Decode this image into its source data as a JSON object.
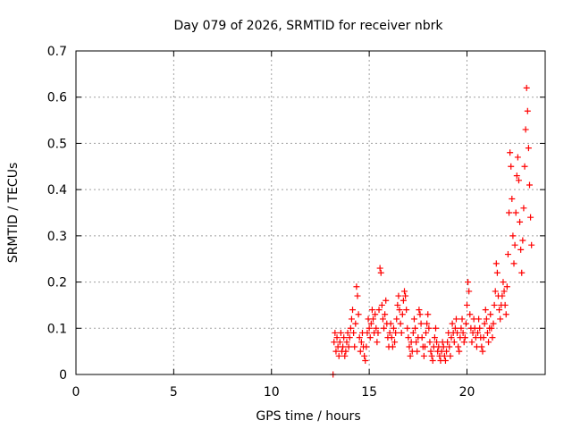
{
  "chart_data": {
    "type": "scatter",
    "title": "Day 079 of 2026, SRMTID for receiver nbrk",
    "xlabel": "GPS time / hours",
    "ylabel": "SRMTID / TECUs",
    "xlim": [
      0,
      24
    ],
    "ylim": [
      0,
      0.7
    ],
    "x_ticks": [
      0,
      5,
      10,
      15,
      20
    ],
    "y_ticks": [
      0,
      0.1,
      0.2,
      0.3,
      0.4,
      0.5,
      0.6,
      0.7
    ],
    "x_tick_labels": [
      "0",
      "5",
      "10",
      "15",
      "20"
    ],
    "y_tick_labels": [
      "0",
      "0.1",
      "0.2",
      "0.3",
      "0.4",
      "0.5",
      "0.6",
      "0.7"
    ],
    "grid": true,
    "marker": "+",
    "series": [
      {
        "name": "SRMTID",
        "color": "#ff0000",
        "points": [
          [
            13.15,
            0.0
          ],
          [
            13.2,
            0.07
          ],
          [
            13.25,
            0.09
          ],
          [
            13.3,
            0.05
          ],
          [
            13.35,
            0.08
          ],
          [
            13.4,
            0.06
          ],
          [
            13.45,
            0.04
          ],
          [
            13.5,
            0.07
          ],
          [
            13.55,
            0.09
          ],
          [
            13.6,
            0.05
          ],
          [
            13.65,
            0.06
          ],
          [
            13.7,
            0.08
          ],
          [
            13.75,
            0.04
          ],
          [
            13.8,
            0.05
          ],
          [
            13.85,
            0.07
          ],
          [
            13.9,
            0.09
          ],
          [
            13.95,
            0.06
          ],
          [
            14.0,
            0.08
          ],
          [
            14.05,
            0.1
          ],
          [
            14.1,
            0.12
          ],
          [
            14.15,
            0.14
          ],
          [
            14.2,
            0.09
          ],
          [
            14.25,
            0.06
          ],
          [
            14.3,
            0.11
          ],
          [
            14.35,
            0.19
          ],
          [
            14.4,
            0.17
          ],
          [
            14.45,
            0.13
          ],
          [
            14.5,
            0.08
          ],
          [
            14.55,
            0.05
          ],
          [
            14.6,
            0.07
          ],
          [
            14.65,
            0.09
          ],
          [
            14.7,
            0.06
          ],
          [
            14.75,
            0.04
          ],
          [
            14.8,
            0.03
          ],
          [
            14.85,
            0.06
          ],
          [
            14.9,
            0.09
          ],
          [
            14.95,
            0.12
          ],
          [
            15.0,
            0.1
          ],
          [
            15.05,
            0.08
          ],
          [
            15.1,
            0.11
          ],
          [
            15.15,
            0.14
          ],
          [
            15.2,
            0.12
          ],
          [
            15.25,
            0.09
          ],
          [
            15.3,
            0.13
          ],
          [
            15.35,
            0.1
          ],
          [
            15.4,
            0.07
          ],
          [
            15.45,
            0.09
          ],
          [
            15.5,
            0.14
          ],
          [
            15.55,
            0.23
          ],
          [
            15.6,
            0.22
          ],
          [
            15.65,
            0.15
          ],
          [
            15.7,
            0.12
          ],
          [
            15.75,
            0.1
          ],
          [
            15.8,
            0.13
          ],
          [
            15.85,
            0.16
          ],
          [
            15.9,
            0.11
          ],
          [
            15.95,
            0.08
          ],
          [
            16.0,
            0.06
          ],
          [
            16.05,
            0.09
          ],
          [
            16.1,
            0.11
          ],
          [
            16.15,
            0.08
          ],
          [
            16.2,
            0.06
          ],
          [
            16.25,
            0.1
          ],
          [
            16.3,
            0.07
          ],
          [
            16.35,
            0.09
          ],
          [
            16.4,
            0.12
          ],
          [
            16.45,
            0.15
          ],
          [
            16.5,
            0.17
          ],
          [
            16.55,
            0.14
          ],
          [
            16.6,
            0.11
          ],
          [
            16.65,
            0.09
          ],
          [
            16.7,
            0.13
          ],
          [
            16.75,
            0.16
          ],
          [
            16.8,
            0.18
          ],
          [
            16.85,
            0.17
          ],
          [
            16.9,
            0.14
          ],
          [
            16.95,
            0.1
          ],
          [
            17.0,
            0.08
          ],
          [
            17.05,
            0.06
          ],
          [
            17.1,
            0.04
          ],
          [
            17.15,
            0.07
          ],
          [
            17.2,
            0.05
          ],
          [
            17.25,
            0.09
          ],
          [
            17.3,
            0.12
          ],
          [
            17.35,
            0.1
          ],
          [
            17.4,
            0.07
          ],
          [
            17.45,
            0.05
          ],
          [
            17.5,
            0.08
          ],
          [
            17.55,
            0.14
          ],
          [
            17.6,
            0.13
          ],
          [
            17.65,
            0.11
          ],
          [
            17.7,
            0.08
          ],
          [
            17.75,
            0.06
          ],
          [
            17.8,
            0.04
          ],
          [
            17.85,
            0.06
          ],
          [
            17.9,
            0.09
          ],
          [
            17.95,
            0.11
          ],
          [
            18.0,
            0.13
          ],
          [
            18.05,
            0.1
          ],
          [
            18.1,
            0.07
          ],
          [
            18.15,
            0.05
          ],
          [
            18.2,
            0.04
          ],
          [
            18.25,
            0.03
          ],
          [
            18.3,
            0.06
          ],
          [
            18.35,
            0.08
          ],
          [
            18.4,
            0.1
          ],
          [
            18.45,
            0.07
          ],
          [
            18.5,
            0.05
          ],
          [
            18.55,
            0.06
          ],
          [
            18.6,
            0.04
          ],
          [
            18.65,
            0.03
          ],
          [
            18.7,
            0.05
          ],
          [
            18.75,
            0.07
          ],
          [
            18.8,
            0.06
          ],
          [
            18.85,
            0.04
          ],
          [
            18.9,
            0.03
          ],
          [
            18.95,
            0.05
          ],
          [
            19.0,
            0.07
          ],
          [
            19.05,
            0.09
          ],
          [
            19.1,
            0.06
          ],
          [
            19.15,
            0.04
          ],
          [
            19.2,
            0.08
          ],
          [
            19.25,
            0.11
          ],
          [
            19.3,
            0.09
          ],
          [
            19.35,
            0.07
          ],
          [
            19.4,
            0.1
          ],
          [
            19.45,
            0.12
          ],
          [
            19.5,
            0.09
          ],
          [
            19.55,
            0.06
          ],
          [
            19.6,
            0.05
          ],
          [
            19.65,
            0.08
          ],
          [
            19.7,
            0.1
          ],
          [
            19.75,
            0.12
          ],
          [
            19.8,
            0.09
          ],
          [
            19.85,
            0.07
          ],
          [
            19.9,
            0.08
          ],
          [
            19.95,
            0.11
          ],
          [
            20.0,
            0.15
          ],
          [
            20.05,
            0.2
          ],
          [
            20.1,
            0.18
          ],
          [
            20.15,
            0.13
          ],
          [
            20.2,
            0.1
          ],
          [
            20.25,
            0.07
          ],
          [
            20.3,
            0.09
          ],
          [
            20.35,
            0.12
          ],
          [
            20.4,
            0.1
          ],
          [
            20.45,
            0.08
          ],
          [
            20.5,
            0.06
          ],
          [
            20.55,
            0.09
          ],
          [
            20.6,
            0.12
          ],
          [
            20.65,
            0.1
          ],
          [
            20.7,
            0.08
          ],
          [
            20.75,
            0.06
          ],
          [
            20.8,
            0.05
          ],
          [
            20.85,
            0.08
          ],
          [
            20.9,
            0.11
          ],
          [
            20.95,
            0.14
          ],
          [
            21.0,
            0.12
          ],
          [
            21.05,
            0.09
          ],
          [
            21.1,
            0.07
          ],
          [
            21.15,
            0.1
          ],
          [
            21.2,
            0.13
          ],
          [
            21.25,
            0.1
          ],
          [
            21.3,
            0.08
          ],
          [
            21.35,
            0.11
          ],
          [
            21.4,
            0.15
          ],
          [
            21.45,
            0.18
          ],
          [
            21.5,
            0.24
          ],
          [
            21.55,
            0.22
          ],
          [
            21.6,
            0.17
          ],
          [
            21.65,
            0.14
          ],
          [
            21.7,
            0.12
          ],
          [
            21.75,
            0.15
          ],
          [
            21.8,
            0.17
          ],
          [
            21.85,
            0.2
          ],
          [
            21.9,
            0.18
          ],
          [
            21.95,
            0.15
          ],
          [
            22.0,
            0.13
          ],
          [
            22.05,
            0.19
          ],
          [
            22.1,
            0.26
          ],
          [
            22.15,
            0.35
          ],
          [
            22.2,
            0.48
          ],
          [
            22.25,
            0.45
          ],
          [
            22.3,
            0.38
          ],
          [
            22.35,
            0.3
          ],
          [
            22.4,
            0.24
          ],
          [
            22.45,
            0.28
          ],
          [
            22.5,
            0.35
          ],
          [
            22.55,
            0.43
          ],
          [
            22.6,
            0.47
          ],
          [
            22.65,
            0.42
          ],
          [
            22.7,
            0.33
          ],
          [
            22.75,
            0.27
          ],
          [
            22.8,
            0.22
          ],
          [
            22.85,
            0.29
          ],
          [
            22.9,
            0.36
          ],
          [
            22.95,
            0.45
          ],
          [
            23.0,
            0.53
          ],
          [
            23.05,
            0.62
          ],
          [
            23.1,
            0.57
          ],
          [
            23.15,
            0.49
          ],
          [
            23.2,
            0.41
          ],
          [
            23.25,
            0.34
          ],
          [
            23.3,
            0.28
          ]
        ]
      }
    ]
  }
}
